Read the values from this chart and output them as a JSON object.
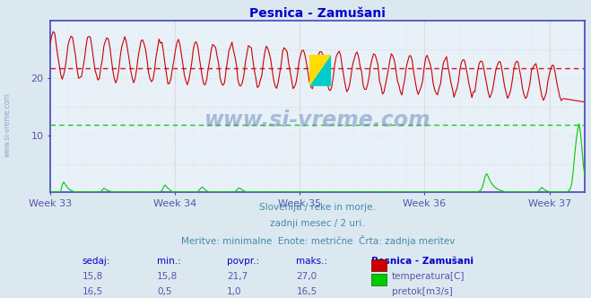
{
  "title": "Pesnica - Zamušani",
  "bg_color": "#dce8f0",
  "plot_bg_color": "#e8f0f8",
  "x_labels": [
    "Week 33",
    "Week 34",
    "Week 35",
    "Week 36",
    "Week 37"
  ],
  "x_ticks_hours": [
    0,
    168,
    336,
    504,
    672
  ],
  "x_max_hours": 720,
  "y_min": 0,
  "y_max": 30,
  "y_ticks": [
    10,
    20
  ],
  "temp_color": "#cc0000",
  "flow_color": "#00cc00",
  "avg_temp": 21.7,
  "avg_flow_scaled": 11.9,
  "min_temp": 15.8,
  "max_temp": 27.0,
  "min_flow": 0.5,
  "max_flow": 16.5,
  "sedaj_temp": 15.8,
  "sedaj_flow": 16.5,
  "subtitle1": "Slovenija / reke in morje.",
  "subtitle2": "zadnji mesec / 2 uri.",
  "subtitle3": "Meritve: minimalne  Enote: metrične  Črta: zadnja meritev",
  "watermark": "www.si-vreme.com",
  "left_label": "www.si-vreme.com",
  "legend_title": "Pesnica - Zamušani",
  "legend_temp_label": "temperatura[C]",
  "legend_flow_label": "pretok[m3/s]",
  "col_sedaj": "sedaj:",
  "col_min": "min.:",
  "col_povpr": "povpr.:",
  "col_maks": "maks.:",
  "spine_color": "#4444bb",
  "grid_h_color": "#cc6666",
  "grid_v_color": "#cc6666",
  "text_color": "#4488aa",
  "label_color": "#5555aa"
}
